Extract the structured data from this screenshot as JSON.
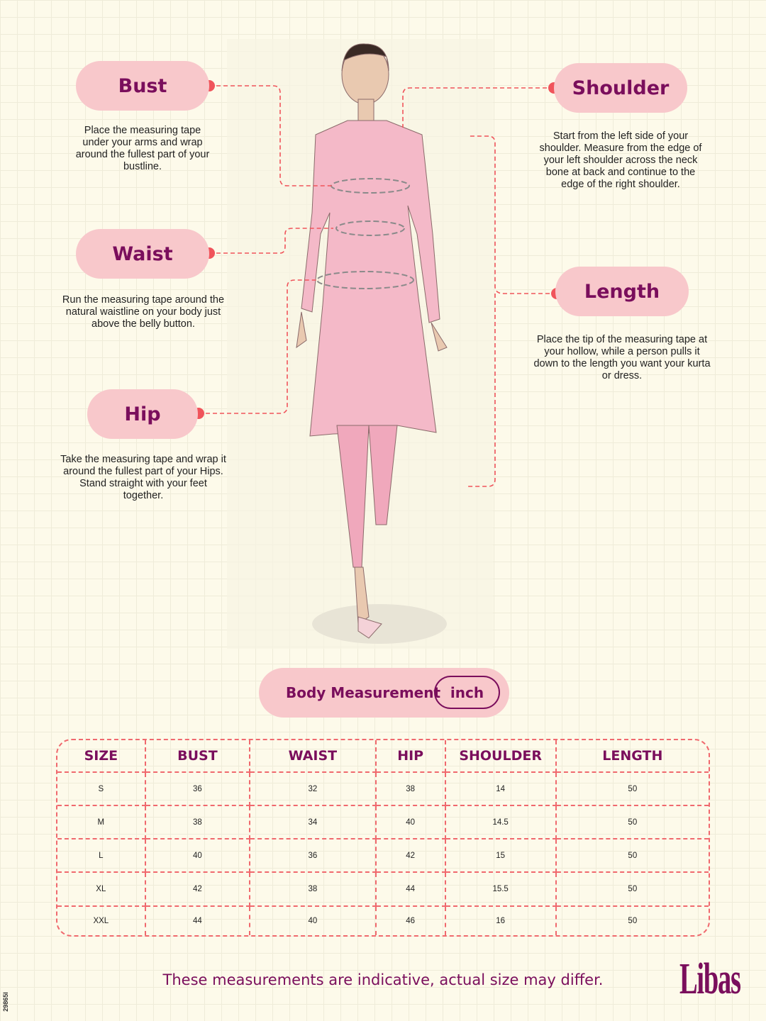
{
  "measurements": {
    "bust": {
      "label": "Bust",
      "description": "Place the measuring tape under your arms and wrap around the fullest part of your bustline."
    },
    "waist": {
      "label": "Waist",
      "description": "Run the measuring tape around the natural waistline on your body just above the belly button."
    },
    "hip": {
      "label": "Hip",
      "description": "Take the measuring tape and wrap it around the fullest part of your Hips. Stand straight with your feet together."
    },
    "shoulder": {
      "label": "Shoulder",
      "description": "Start from the left side of your shoulder. Measure from the edge of your left shoulder across the neck bone at back and continue to the edge of the right shoulder."
    },
    "length": {
      "label": "Length",
      "description": "Place the tip of the measuring tape at your hollow, while a person pulls it down to the length you want your kurta or dress."
    }
  },
  "body_measurement": {
    "label": "Body Measurement",
    "unit": "inch"
  },
  "table": {
    "headers": [
      "SIZE",
      "BUST",
      "WAIST",
      "HIP",
      "SHOULDER",
      "LENGTH"
    ],
    "rows": [
      [
        "S",
        "36",
        "32",
        "38",
        "14",
        "50"
      ],
      [
        "M",
        "38",
        "34",
        "40",
        "14.5",
        "50"
      ],
      [
        "L",
        "40",
        "36",
        "42",
        "15",
        "50"
      ],
      [
        "XL",
        "42",
        "38",
        "44",
        "15.5",
        "50"
      ],
      [
        "XXL",
        "44",
        "40",
        "46",
        "16",
        "50"
      ]
    ]
  },
  "footer": {
    "note": "These measurements are indicative, actual size may differ.",
    "brand": "Libas",
    "code": "29865I"
  },
  "colors": {
    "accent": "#7a0e5c",
    "pill": "#f8c8cb",
    "dashed": "#f0545b"
  }
}
